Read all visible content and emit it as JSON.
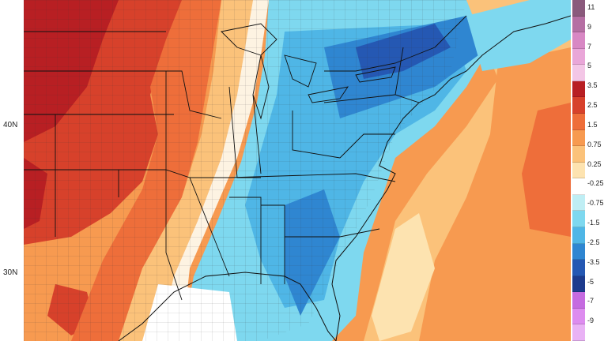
{
  "map": {
    "lat_labels": [
      "40N",
      "30N"
    ]
  },
  "colorbar": {
    "labels": [
      "11",
      "9",
      "7",
      "5",
      "3.5",
      "2.5",
      "1.5",
      "0.75",
      "0.25",
      "-0.25",
      "-0.75",
      "-1.5",
      "-2.5",
      "-3.5",
      "-5",
      "-7",
      "-9"
    ],
    "colors": [
      "#8a5a7c",
      "#b56fa3",
      "#d888c4",
      "#e9a6d8",
      "#f3c6e6",
      "#b81f23",
      "#d7412b",
      "#ee6e3a",
      "#f79a50",
      "#fbc27a",
      "#fde3b0",
      "#ffffff",
      "#bfeef4",
      "#7ed8ef",
      "#4fb6e6",
      "#2f86d1",
      "#2558b3",
      "#1d3b8d",
      "#c56be0",
      "#dd8cef",
      "#e9b2f5"
    ]
  }
}
